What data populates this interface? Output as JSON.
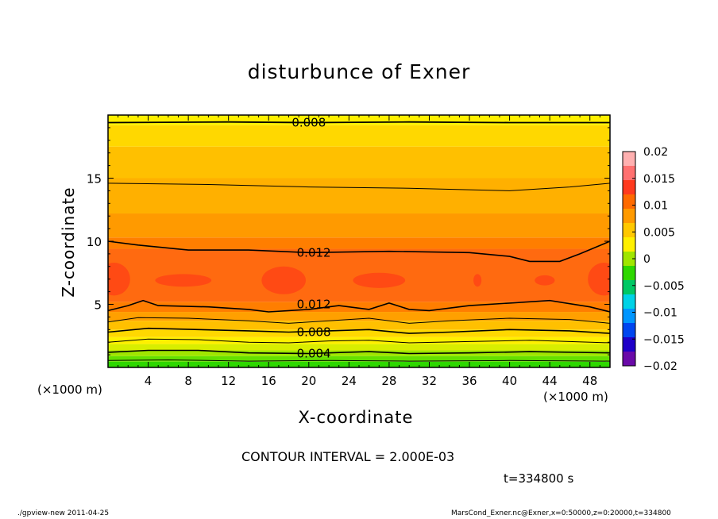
{
  "chart_data": {
    "type": "heatmap",
    "title": "disturbunce of Exner",
    "xlabel": "X-coordinate",
    "ylabel": "Z-coordinate",
    "x_unit": "(×1000 m)",
    "z_unit": "(×1000 m)",
    "xlim": [
      0,
      50
    ],
    "ylim": [
      0,
      20
    ],
    "x_ticks": [
      4,
      8,
      12,
      16,
      20,
      24,
      28,
      32,
      36,
      40,
      44,
      48
    ],
    "y_ticks": [
      5,
      10,
      15
    ],
    "colorbar": {
      "range": [
        -0.02,
        0.02
      ],
      "tick_values": [
        0.02,
        0.015,
        0.01,
        0.005,
        0,
        -0.005,
        -0.01,
        -0.015,
        -0.02
      ],
      "tick_labels": [
        "0.02",
        "0.015",
        "0.01",
        "0.005",
        "0",
        "−0.005",
        "−0.01",
        "−0.015",
        "−0.02"
      ],
      "colors": [
        "#6a0aa8",
        "#1e00c8",
        "#0046f0",
        "#0096ff",
        "#00d2e6",
        "#00c864",
        "#2ed800",
        "#a0e600",
        "#fff000",
        "#ffc800",
        "#ff9a00",
        "#ff6a00",
        "#ff3a1e",
        "#ff7070",
        "#ffb0b0"
      ]
    },
    "contour_interval": "CONTOUR INTERVAL = 2.000E-03",
    "contour_labels": [
      {
        "text": "0.008",
        "x": 20,
        "z": 19.4
      },
      {
        "text": "0.012",
        "x": 20.5,
        "z": 9.1
      },
      {
        "text": "0.012",
        "x": 20.5,
        "z": 5.0
      },
      {
        "text": "0.008",
        "x": 20.5,
        "z": 2.8
      },
      {
        "text": "0.004",
        "x": 20.5,
        "z": 1.1
      }
    ],
    "time_label": "t=334800 s",
    "footer_left": "./gpview-new   2011-04-25",
    "footer_right": "MarsCond_Exner.nc@Exner,x=0:50000,z=0:20000,t=334800"
  }
}
